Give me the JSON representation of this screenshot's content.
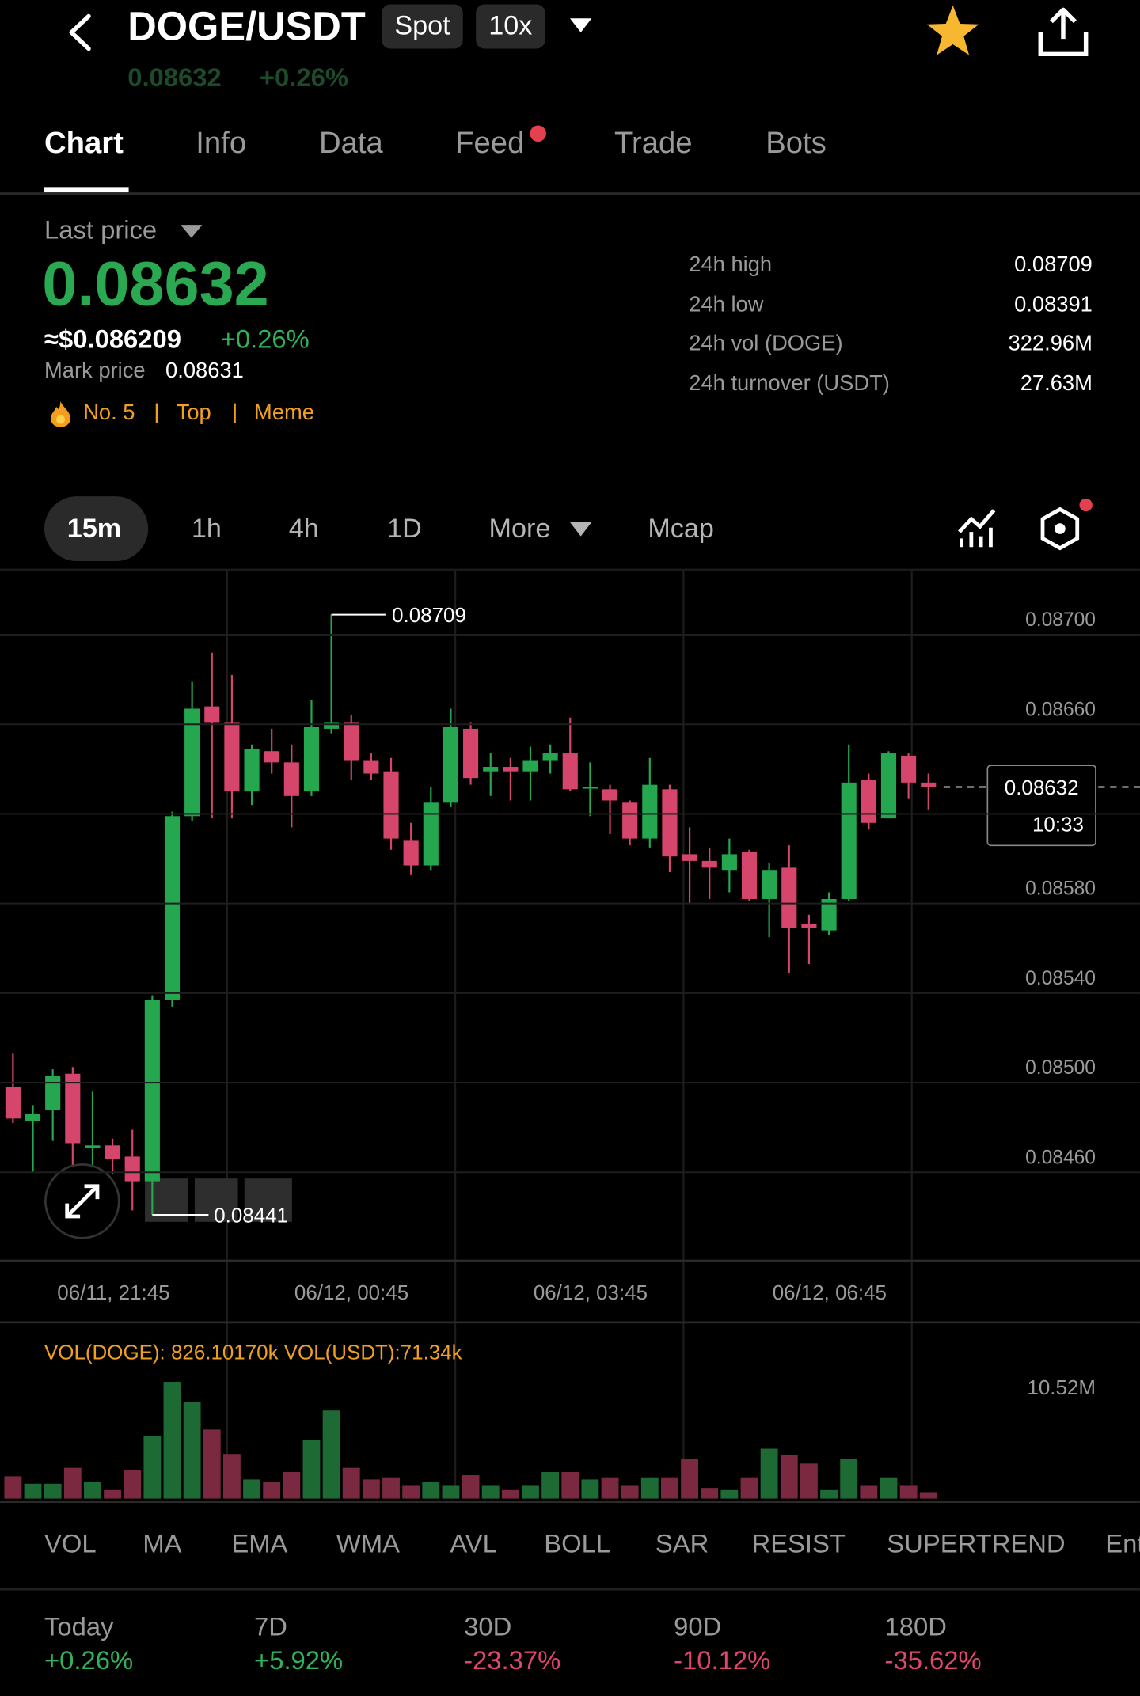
{
  "header": {
    "title": "DOGE/USDT",
    "badges": [
      "Spot",
      "10x"
    ],
    "sub_price": "0.08632",
    "sub_change": "+0.26%"
  },
  "tabs": [
    "Chart",
    "Info",
    "Data",
    "Feed",
    "Trade",
    "Bots"
  ],
  "price": {
    "label": "Last price",
    "value": "0.08632",
    "usd": "≈$0.086209",
    "change": "+0.26%",
    "mark_label": "Mark price",
    "mark_value": "0.08631",
    "tags": [
      "No. 5",
      "Top",
      "Meme"
    ]
  },
  "stats": [
    {
      "label": "24h high",
      "value": "0.08709"
    },
    {
      "label": "24h low",
      "value": "0.08391"
    },
    {
      "label": "24h vol (DOGE)",
      "value": "322.96M"
    },
    {
      "label": "24h turnover (USDT)",
      "value": "27.63M"
    }
  ],
  "intervals": [
    "15m",
    "1h",
    "4h",
    "1D",
    "More",
    "Mcap"
  ],
  "chart_data": {
    "type": "candlestick",
    "up_color": "#25a750",
    "down_color": "#d6456b",
    "open": [
      0.08498,
      0.08483,
      0.08488,
      0.08504,
      0.08471,
      0.08472,
      0.08467,
      0.08456,
      0.08537,
      0.08619,
      0.08668,
      0.08661,
      0.0863,
      0.08648,
      0.08643,
      0.0863,
      0.08658,
      0.08661,
      0.08644,
      0.08639,
      0.08608,
      0.08597,
      0.08625,
      0.08658,
      0.08639,
      0.08641,
      0.08639,
      0.08644,
      0.08647,
      0.08632,
      0.08631,
      0.08625,
      0.08609,
      0.08631,
      0.08602,
      0.08599,
      0.08595,
      0.08603,
      0.08582,
      0.08596,
      0.08571,
      0.08568,
      0.08582,
      0.08635,
      0.08618,
      0.08646,
      0.08634
    ],
    "high": [
      0.08513,
      0.0849,
      0.08506,
      0.08507,
      0.08496,
      0.08475,
      0.08479,
      0.08539,
      0.08621,
      0.08679,
      0.08692,
      0.08682,
      0.08651,
      0.08658,
      0.08651,
      0.08671,
      0.08709,
      0.08664,
      0.08647,
      0.08645,
      0.08616,
      0.08632,
      0.08667,
      0.08661,
      0.08647,
      0.08645,
      0.0865,
      0.08651,
      0.08663,
      0.08643,
      0.08633,
      0.08626,
      0.08645,
      0.08633,
      0.08614,
      0.08605,
      0.08609,
      0.08604,
      0.08598,
      0.08606,
      0.08575,
      0.08585,
      0.08651,
      0.08638,
      0.08648,
      0.08647,
      0.08638
    ],
    "low": [
      0.08482,
      0.0846,
      0.08474,
      0.08462,
      0.08457,
      0.08459,
      0.08443,
      0.08441,
      0.08534,
      0.08617,
      0.08618,
      0.08618,
      0.08624,
      0.08638,
      0.08614,
      0.08628,
      0.08656,
      0.08635,
      0.08635,
      0.08604,
      0.08593,
      0.08595,
      0.08623,
      0.08633,
      0.08628,
      0.08626,
      0.08626,
      0.08638,
      0.0863,
      0.08619,
      0.08611,
      0.08606,
      0.08605,
      0.08594,
      0.0858,
      0.08582,
      0.08585,
      0.08581,
      0.08565,
      0.08549,
      0.08553,
      0.08566,
      0.08581,
      0.08613,
      0.08618,
      0.08627,
      0.08622
    ],
    "close": [
      0.08484,
      0.08486,
      0.08503,
      0.08473,
      0.08472,
      0.08466,
      0.08456,
      0.08537,
      0.08619,
      0.08667,
      0.08661,
      0.0863,
      0.08649,
      0.08643,
      0.08628,
      0.08659,
      0.08661,
      0.08644,
      0.08638,
      0.08609,
      0.08597,
      0.08625,
      0.08659,
      0.08636,
      0.08641,
      0.08639,
      0.08644,
      0.08647,
      0.08631,
      0.08632,
      0.08626,
      0.08609,
      0.08633,
      0.08601,
      0.08599,
      0.08596,
      0.08602,
      0.08582,
      0.08595,
      0.08569,
      0.08569,
      0.08582,
      0.08634,
      0.08616,
      0.08647,
      0.08634,
      0.08632
    ],
    "ylim": [
      0.08421,
      0.08729
    ],
    "yticks": [
      {
        "value": 0.087,
        "label": "0.08700"
      },
      {
        "value": 0.0866,
        "label": "0.08660"
      },
      {
        "value": 0.0862,
        "label": "0.08620"
      },
      {
        "value": 0.0858,
        "label": "0.08580"
      },
      {
        "value": 0.0854,
        "label": "0.08540"
      },
      {
        "value": 0.085,
        "label": "0.08500"
      },
      {
        "value": 0.0846,
        "label": "0.08460"
      }
    ],
    "xticks": [
      "06/11, 21:45",
      "06/12, 00:45",
      "06/12, 03:45",
      "06/12, 06:45"
    ],
    "max_marker": "0.08709",
    "min_marker": "0.08441",
    "last_price": "0.08632",
    "countdown": "10:33",
    "volume": {
      "legend": "VOL(DOGE): 826.10170k VOL(USDT):71.34k",
      "values": [
        2.1,
        1.4,
        1.4,
        2.9,
        1.6,
        0.8,
        2.7,
        5.9,
        11.0,
        9.1,
        6.5,
        4.2,
        1.8,
        1.6,
        2.5,
        5.5,
        8.3,
        2.9,
        1.8,
        2.0,
        1.2,
        1.6,
        1.2,
        2.2,
        1.2,
        0.8,
        1.2,
        2.5,
        2.5,
        1.8,
        2.0,
        1.2,
        2.0,
        2.0,
        3.7,
        1.0,
        0.8,
        2.0,
        4.7,
        4.1,
        3.3,
        0.8,
        3.7,
        1.2,
        2.0,
        1.2,
        0.6
      ],
      "ylim": [
        0,
        16.4
      ],
      "yticks": [
        {
          "value": 10.52,
          "label": "10.52M"
        }
      ],
      "up_color": "#1d6a35",
      "down_color": "#7b2941"
    }
  },
  "indicators": [
    "VOL",
    "MA",
    "EMA",
    "WMA",
    "AVL",
    "BOLL",
    "SAR",
    "RESIST",
    "SUPERTREND",
    "Ent"
  ],
  "performance": [
    {
      "label": "Today",
      "value": "+0.26%"
    },
    {
      "label": "7D",
      "value": "+5.92%"
    },
    {
      "label": "30D",
      "value": "-23.37%"
    },
    {
      "label": "90D",
      "value": "-10.12%"
    },
    {
      "label": "180D",
      "value": "-35.62%"
    }
  ]
}
